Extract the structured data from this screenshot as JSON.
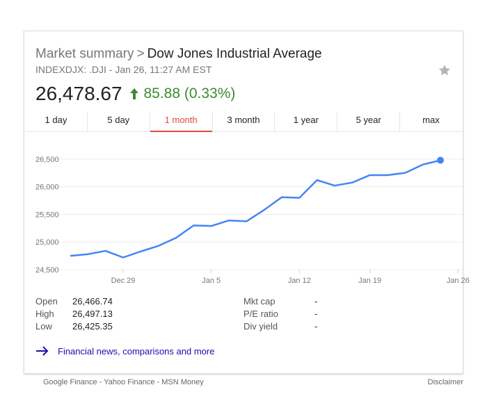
{
  "header": {
    "breadcrumb": "Market summary",
    "separator": ">",
    "name": "Dow Jones Industrial Average",
    "subtitle": "INDEXDJX: .DJI - Jan 26, 11:27 AM EST"
  },
  "quote": {
    "price": "26,478.67",
    "change": "85.88 (0.33%)",
    "direction": "up",
    "color": "#3c8b2f"
  },
  "tabs": [
    {
      "label": "1 day",
      "active": false
    },
    {
      "label": "5 day",
      "active": false
    },
    {
      "label": "1 month",
      "active": true
    },
    {
      "label": "3 month",
      "active": false
    },
    {
      "label": "1 year",
      "active": false
    },
    {
      "label": "5 year",
      "active": false
    },
    {
      "label": "max",
      "active": false
    }
  ],
  "chart_data": {
    "type": "line",
    "title": "",
    "xlabel": "",
    "ylabel": "",
    "ylim": [
      24500,
      26750
    ],
    "y_ticks": [
      24500,
      25000,
      25500,
      26000,
      26500
    ],
    "y_tick_labels": [
      "24,500",
      "25,000",
      "25,500",
      "26,000",
      "26,500"
    ],
    "x_tick_labels": [
      "Dec 29",
      "Jan 5",
      "Jan 12",
      "Jan 19",
      "Jan 26"
    ],
    "x_tick_index": [
      3,
      8,
      13,
      17,
      22
    ],
    "grid": true,
    "line_color": "#4285f4",
    "series": [
      {
        "values": [
          24750,
          24780,
          24840,
          24720,
          24830,
          24930,
          25075,
          25300,
          25290,
          25390,
          25375,
          25580,
          25810,
          25800,
          26120,
          26020,
          26075,
          26210,
          26210,
          26250,
          26400,
          26478
        ]
      }
    ]
  },
  "stats": {
    "left": [
      {
        "label": "Open",
        "value": "26,466.74"
      },
      {
        "label": "High",
        "value": "26,497.13"
      },
      {
        "label": "Low",
        "value": "26,425.35"
      }
    ],
    "right": [
      {
        "label": "Mkt cap",
        "value": "-"
      },
      {
        "label": "P/E ratio",
        "value": "-"
      },
      {
        "label": "Div yield",
        "value": "-"
      }
    ]
  },
  "more_link": "Financial news, comparisons and more",
  "footer": {
    "sources": [
      "Google Finance",
      "Yahoo Finance",
      "MSN Money"
    ],
    "sep": " - ",
    "disclaimer": "Disclaimer"
  },
  "icons": {
    "star": "star-icon",
    "arrow_up": "arrow-up-icon",
    "arrow_right": "arrow-right-icon"
  }
}
